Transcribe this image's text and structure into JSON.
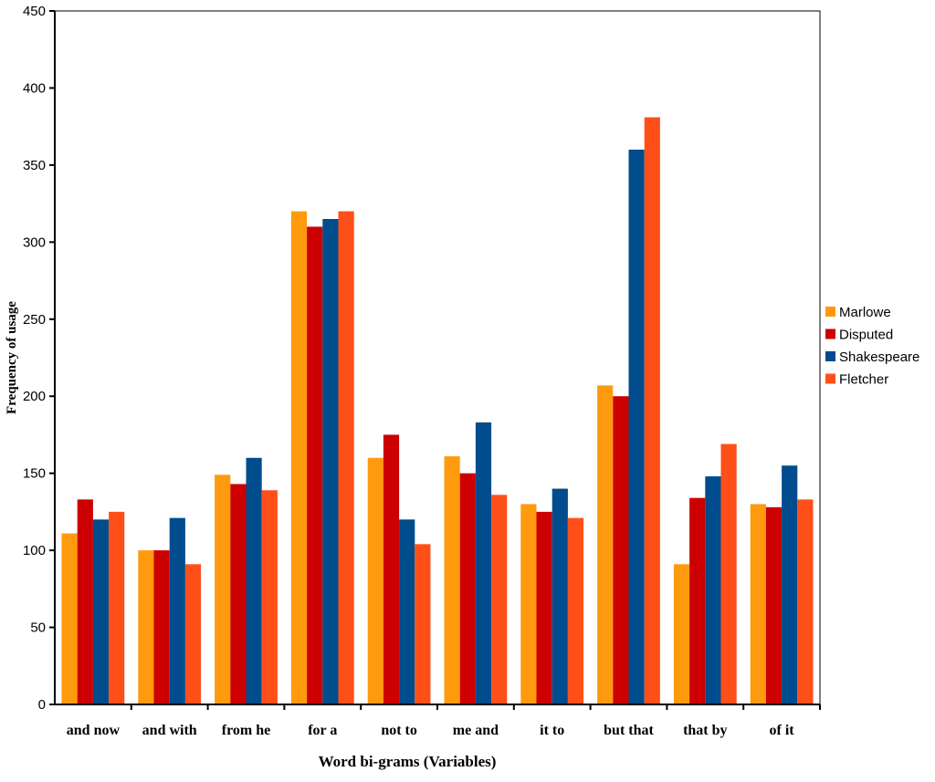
{
  "chart_data": {
    "type": "bar",
    "x_label": "Word bi-grams (Variables)",
    "y_label": "Frequency of usage",
    "categories": [
      "and now",
      "and with",
      "from he",
      "for a",
      "not to",
      "me and",
      "it to",
      "but that",
      "that by",
      "of it"
    ],
    "series": [
      {
        "name": "Marlowe",
        "color": "#ff9a0e",
        "values": [
          111,
          100,
          149,
          320,
          160,
          161,
          130,
          207,
          91,
          130
        ]
      },
      {
        "name": "Disputed",
        "color": "#cc0000",
        "values": [
          133,
          100,
          143,
          310,
          175,
          150,
          125,
          200,
          134,
          128
        ]
      },
      {
        "name": "Shakespeare",
        "color": "#004c8c",
        "values": [
          120,
          121,
          160,
          315,
          120,
          183,
          140,
          360,
          148,
          155
        ]
      },
      {
        "name": "Fletcher",
        "color": "#ff4f19",
        "values": [
          125,
          91,
          139,
          320,
          104,
          136,
          121,
          381,
          169,
          133
        ]
      }
    ],
    "ylim": [
      0,
      450
    ],
    "yticks": [
      0,
      50,
      100,
      150,
      200,
      250,
      300,
      350,
      400,
      450
    ],
    "grid": false,
    "legend": "right"
  }
}
